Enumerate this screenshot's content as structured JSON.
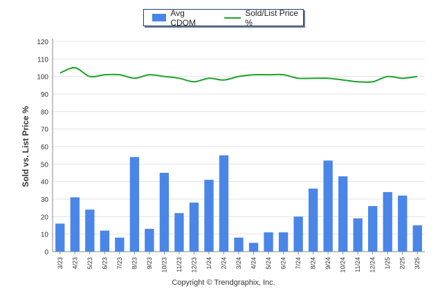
{
  "chart_data": {
    "type": "bar",
    "categories": [
      "3/23",
      "4/23",
      "5/23",
      "6/23",
      "7/23",
      "8/23",
      "9/23",
      "10/23",
      "11/23",
      "12/23",
      "1/24",
      "2/24",
      "3/24",
      "4/24",
      "5/24",
      "6/24",
      "7/24",
      "8/24",
      "9/24",
      "10/24",
      "11/24",
      "12/24",
      "1/25",
      "2/25",
      "3/25"
    ],
    "series": [
      {
        "name": "Avg CDOM",
        "type": "bar",
        "color": "#4a86e8",
        "values": [
          16,
          31,
          24,
          12,
          8,
          54,
          13,
          45,
          22,
          28,
          41,
          55,
          8,
          5,
          11,
          11,
          20,
          36,
          52,
          43,
          19,
          26,
          34,
          32,
          15
        ]
      },
      {
        "name": "Sold/List Price %",
        "type": "line",
        "color": "#1aa32a",
        "values": [
          102,
          105,
          100,
          101,
          101,
          99,
          101,
          100,
          99,
          97,
          99,
          98,
          100,
          101,
          101,
          101,
          99,
          99,
          99,
          98,
          97,
          97,
          100,
          99,
          100
        ]
      }
    ],
    "ylabel": "Sold vs. List Price %",
    "ylim": [
      0,
      120
    ],
    "yticks": [
      0,
      10,
      20,
      30,
      40,
      50,
      60,
      70,
      80,
      90,
      100,
      110,
      120
    ],
    "grid": true,
    "legend_position": "top-center"
  },
  "footer": {
    "copyright": "Copyright © Trendgraphix, Inc."
  }
}
